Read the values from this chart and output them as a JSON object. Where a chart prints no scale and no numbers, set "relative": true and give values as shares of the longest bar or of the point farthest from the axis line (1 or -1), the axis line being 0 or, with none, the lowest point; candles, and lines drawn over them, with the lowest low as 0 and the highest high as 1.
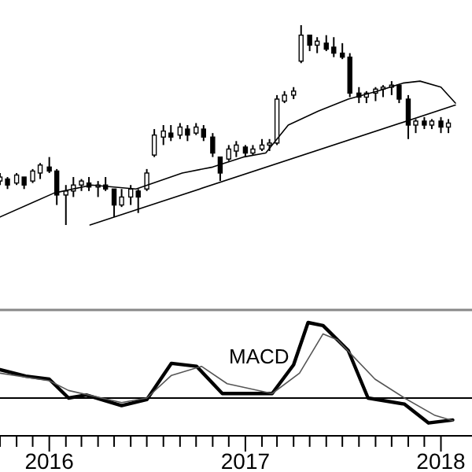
{
  "chart_data": [
    {
      "type": "candlestick",
      "relative": true,
      "tick_labels": false,
      "xlim": [
        "2015-10-01",
        "2018-02-28"
      ],
      "x": [
        "2015-10-01",
        "2015-10-15",
        "2015-11-01",
        "2015-11-15",
        "2015-12-01",
        "2015-12-15",
        "2016-01-01",
        "2016-01-15",
        "2016-02-01",
        "2016-02-15",
        "2016-03-01",
        "2016-03-15",
        "2016-04-01",
        "2016-04-15",
        "2016-05-01",
        "2016-05-15",
        "2016-06-01",
        "2016-06-15",
        "2016-07-01",
        "2016-07-15",
        "2016-08-01",
        "2016-08-15",
        "2016-09-01",
        "2016-09-15",
        "2016-10-01",
        "2016-10-15",
        "2016-11-01",
        "2016-11-15",
        "2016-12-01",
        "2016-12-15",
        "2017-01-01",
        "2017-01-15",
        "2017-02-01",
        "2017-02-15",
        "2017-03-01",
        "2017-03-15",
        "2017-04-01",
        "2017-04-15",
        "2017-05-01",
        "2017-05-15",
        "2017-06-01",
        "2017-06-15",
        "2017-07-01",
        "2017-07-15",
        "2017-08-01",
        "2017-08-15",
        "2017-09-01",
        "2017-09-15",
        "2017-10-01",
        "2017-10-15",
        "2017-11-01",
        "2017-11-15",
        "2017-12-01",
        "2017-12-15",
        "2018-01-01",
        "2018-01-15"
      ],
      "ohlc": [
        [
          0.22,
          0.26,
          0.2,
          0.24
        ],
        [
          0.23,
          0.24,
          0.18,
          0.2
        ],
        [
          0.21,
          0.26,
          0.2,
          0.25
        ],
        [
          0.24,
          0.24,
          0.18,
          0.2
        ],
        [
          0.22,
          0.28,
          0.21,
          0.27
        ],
        [
          0.26,
          0.31,
          0.23,
          0.3
        ],
        [
          0.29,
          0.34,
          0.26,
          0.27
        ],
        [
          0.27,
          0.28,
          0.1,
          0.15
        ],
        [
          0.15,
          0.2,
          0,
          0.17
        ],
        [
          0.17,
          0.24,
          0.14,
          0.2
        ],
        [
          0.2,
          0.23,
          0.17,
          0.22
        ],
        [
          0.21,
          0.24,
          0.17,
          0.19
        ],
        [
          0.19,
          0.22,
          0.14,
          0.2
        ],
        [
          0.2,
          0.24,
          0.17,
          0.18
        ],
        [
          0.18,
          0.18,
          0.04,
          0.1
        ],
        [
          0.1,
          0.18,
          0.09,
          0.14
        ],
        [
          0.14,
          0.2,
          0.1,
          0.18
        ],
        [
          0.17,
          0.18,
          0.06,
          0.14
        ],
        [
          0.18,
          0.28,
          0.17,
          0.26
        ],
        [
          0.35,
          0.48,
          0.34,
          0.45
        ],
        [
          0.44,
          0.5,
          0.4,
          0.47
        ],
        [
          0.46,
          0.5,
          0.42,
          0.44
        ],
        [
          0.45,
          0.51,
          0.43,
          0.49
        ],
        [
          0.48,
          0.5,
          0.42,
          0.45
        ],
        [
          0.46,
          0.51,
          0.45,
          0.49
        ],
        [
          0.48,
          0.5,
          0.42,
          0.44
        ],
        [
          0.44,
          0.46,
          0.34,
          0.36
        ],
        [
          0.34,
          0.34,
          0.22,
          0.26
        ],
        [
          0.33,
          0.4,
          0.32,
          0.38
        ],
        [
          0.37,
          0.42,
          0.34,
          0.4
        ],
        [
          0.39,
          0.4,
          0.34,
          0.36
        ],
        [
          0.36,
          0.4,
          0.35,
          0.38
        ],
        [
          0.38,
          0.43,
          0.37,
          0.4
        ],
        [
          0.4,
          0.43,
          0.37,
          0.41
        ],
        [
          0.41,
          0.65,
          0.4,
          0.63
        ],
        [
          0.62,
          0.67,
          0.61,
          0.65
        ],
        [
          0.65,
          0.69,
          0.63,
          0.67
        ],
        [
          0.82,
          1,
          0.81,
          0.95
        ],
        [
          0.95,
          0.95,
          0.87,
          0.9
        ],
        [
          0.9,
          0.94,
          0.86,
          0.92
        ],
        [
          0.91,
          0.95,
          0.87,
          0.88
        ],
        [
          0.89,
          0.94,
          0.84,
          0.86
        ],
        [
          0.86,
          0.91,
          0.83,
          0.84
        ],
        [
          0.84,
          0.86,
          0.64,
          0.66
        ],
        [
          0.66,
          0.69,
          0.61,
          0.64
        ],
        [
          0.64,
          0.67,
          0.61,
          0.66
        ],
        [
          0.66,
          0.69,
          0.62,
          0.68
        ],
        [
          0.68,
          0.7,
          0.64,
          0.69
        ],
        [
          0.69,
          0.72,
          0.65,
          0.7
        ],
        [
          0.7,
          0.7,
          0.61,
          0.63
        ],
        [
          0.63,
          0.65,
          0.43,
          0.5
        ],
        [
          0.5,
          0.53,
          0.46,
          0.52
        ],
        [
          0.52,
          0.54,
          0.48,
          0.5
        ],
        [
          0.5,
          0.53,
          0.48,
          0.52
        ],
        [
          0.52,
          0.54,
          0.46,
          0.49
        ],
        [
          0.49,
          0.53,
          0.46,
          0.51
        ]
      ],
      "series": [
        {
          "type": "line",
          "color": "#000000",
          "x": [
            "2015-10-01",
            "2016-01-10",
            "2016-03-20",
            "2016-06-11",
            "2016-09-05",
            "2016-11-01",
            "2016-12-28",
            "2017-02-08",
            "2017-03-22",
            "2017-05-17",
            "2017-07-12",
            "2017-09-05",
            "2017-10-22",
            "2017-11-23",
            "2018-01-01",
            "2018-01-28"
          ],
          "values": [
            0.04,
            0.16,
            0.2,
            0.18,
            0.26,
            0.29,
            0.34,
            0.36,
            0.5,
            0.57,
            0.63,
            0.67,
            0.71,
            0.72,
            0.69,
            0.61
          ]
        },
        {
          "type": "line",
          "color": "#000000",
          "x": [
            "2016-03-17",
            "2018-01-28"
          ],
          "values": [
            0,
            0.6
          ]
        }
      ]
    },
    {
      "type": "line",
      "relative": true,
      "tick_labels": "x",
      "xlim": [
        "2015-10-01",
        "2018-02-28"
      ],
      "xticks": [
        {
          "value": "2015-10-01",
          "label": null
        },
        {
          "value": "2015-11-01",
          "label": null
        },
        {
          "value": "2015-12-01",
          "label": null
        },
        {
          "value": "2016-01-01",
          "label": "2016"
        },
        {
          "value": "2016-02-01",
          "label": null
        },
        {
          "value": "2016-03-01",
          "label": null
        },
        {
          "value": "2016-04-01",
          "label": null
        },
        {
          "value": "2016-05-01",
          "label": null
        },
        {
          "value": "2016-06-01",
          "label": null
        },
        {
          "value": "2016-07-01",
          "label": null
        },
        {
          "value": "2016-08-01",
          "label": null
        },
        {
          "value": "2016-09-01",
          "label": null
        },
        {
          "value": "2016-10-01",
          "label": null
        },
        {
          "value": "2016-11-01",
          "label": null
        },
        {
          "value": "2016-12-01",
          "label": null
        },
        {
          "value": "2017-01-01",
          "label": "2017"
        },
        {
          "value": "2017-02-01",
          "label": null
        },
        {
          "value": "2017-03-01",
          "label": null
        },
        {
          "value": "2017-04-01",
          "label": null
        },
        {
          "value": "2017-05-01",
          "label": null
        },
        {
          "value": "2017-06-01",
          "label": null
        },
        {
          "value": "2017-07-01",
          "label": null
        },
        {
          "value": "2017-08-01",
          "label": null
        },
        {
          "value": "2017-09-01",
          "label": null
        },
        {
          "value": "2017-10-01",
          "label": null
        },
        {
          "value": "2017-11-01",
          "label": null
        },
        {
          "value": "2017-12-01",
          "label": null
        },
        {
          "value": "2018-01-01",
          "label": "2018"
        }
      ],
      "ref_lines": [
        {
          "axis": "y",
          "value": 0,
          "color": "#000000"
        }
      ],
      "series": [
        {
          "name": "MACD",
          "color": "#000000",
          "x": [
            "2015-10-01",
            "2015-11-18",
            "2016-01-01",
            "2016-02-06",
            "2016-03-10",
            "2016-05-15",
            "2016-07-01",
            "2016-08-16",
            "2016-10-02",
            "2016-11-19",
            "2017-02-20",
            "2017-04-01",
            "2017-04-28",
            "2017-05-26",
            "2017-07-12",
            "2017-08-18",
            "2017-10-25",
            "2017-12-09",
            "2018-01-23"
          ],
          "values": [
            0.375,
            0.29,
            0.25,
            0,
            0.04,
            -0.1,
            -0.02,
            0.46,
            0.42,
            0.06,
            0.06,
            0.44,
            1,
            0.96,
            0.63,
            0,
            -0.08,
            -0.33,
            -0.29
          ]
        },
        {
          "color": "#555555",
          "x": [
            "2015-10-01",
            "2016-01-01",
            "2016-02-06",
            "2016-05-15",
            "2016-07-01",
            "2016-08-16",
            "2016-10-11",
            "2016-11-28",
            "2017-02-20",
            "2017-04-12",
            "2017-05-26",
            "2017-06-22",
            "2017-08-31",
            "2017-10-25",
            "2017-12-21",
            "2018-01-23"
          ],
          "values": [
            0.33,
            0.23,
            0.1,
            -0.06,
            0,
            0.3,
            0.42,
            0.19,
            0.06,
            0.33,
            0.85,
            0.77,
            0.25,
            0,
            -0.23,
            -0.3
          ]
        }
      ]
    }
  ]
}
